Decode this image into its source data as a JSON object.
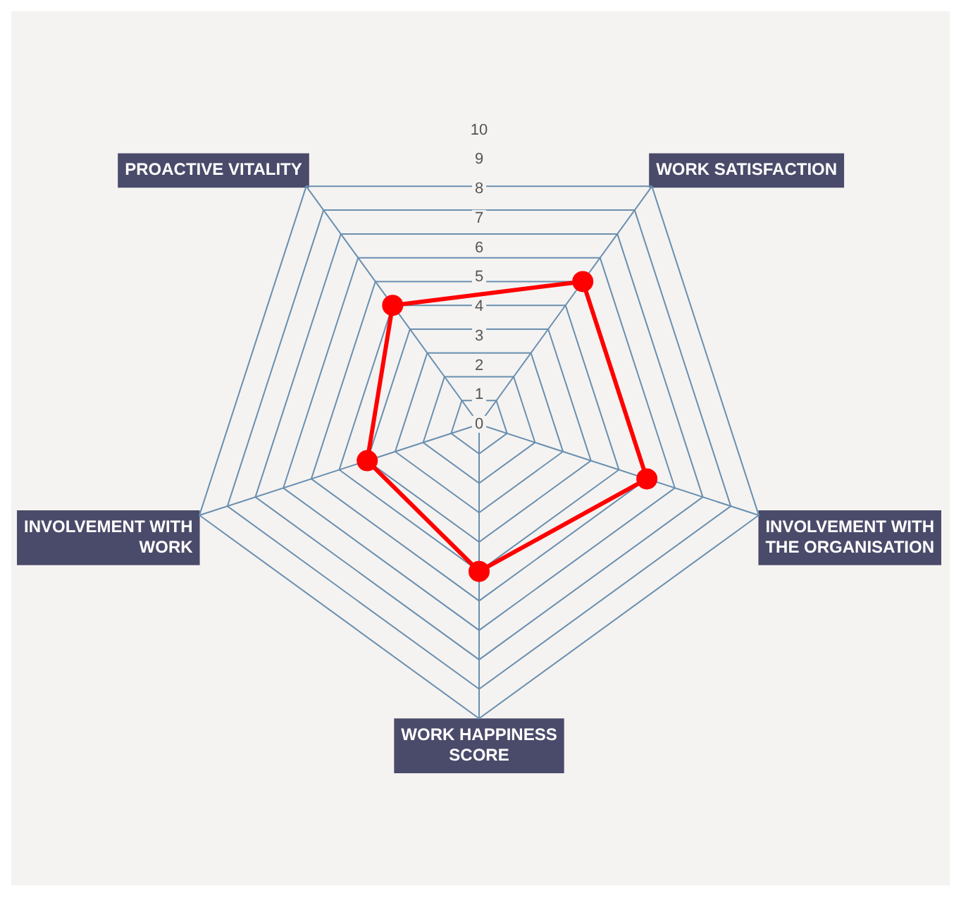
{
  "chart_data": {
    "type": "radar",
    "categories": [
      "WORK SATISFACTION",
      "INVOLVEMENT WITH THE ORGANISATION",
      "WORK HAPPINESS SCORE",
      "INVOLVEMENT WITH WORK",
      "PROACTIVE VITALITY"
    ],
    "series": [
      {
        "color": "#ff0000",
        "values": [
          6,
          6,
          5,
          4,
          5
        ]
      }
    ],
    "ylim": [
      0,
      10
    ],
    "yticks": [
      0,
      1,
      2,
      3,
      4,
      5,
      6,
      7,
      8,
      9,
      10
    ],
    "grid": true,
    "legend": false,
    "marker": "circle",
    "line_style": "solid"
  }
}
